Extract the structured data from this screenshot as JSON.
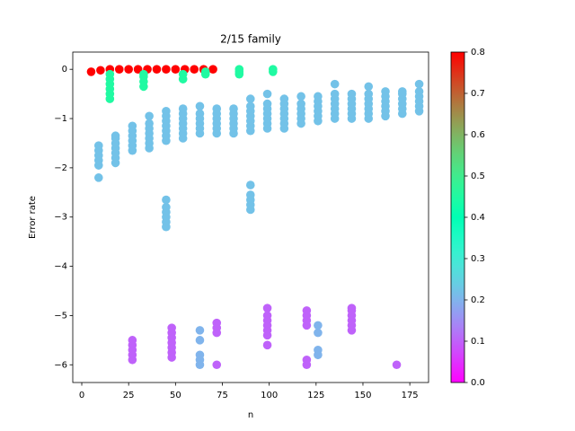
{
  "chart_data": {
    "type": "scatter",
    "title": "2/15 family",
    "x_label": "n",
    "y_label": "Error rate",
    "xlim": [
      -4.8,
      185
    ],
    "ylim": [
      -6.36,
      0.35
    ],
    "xticks": [
      0,
      25,
      50,
      75,
      100,
      125,
      150,
      175
    ],
    "yticks": [
      {
        "value": -6,
        "label": "−6"
      },
      {
        "value": -5,
        "label": "−5"
      },
      {
        "value": -4,
        "label": "−4"
      },
      {
        "value": -3,
        "label": "−3"
      },
      {
        "value": -2,
        "label": "−2"
      },
      {
        "value": -1,
        "label": "−1"
      },
      0
    ],
    "colormap": "rainbow",
    "clim": [
      0,
      0.8
    ],
    "cticks": [
      {
        "value": 0,
        "label": "0.0"
      },
      0.1,
      0.2,
      0.3,
      0.4,
      0.5,
      0.6,
      0.7,
      0.8
    ],
    "series": [
      {
        "c": 0.8,
        "x": [
          5,
          10,
          15,
          20,
          25,
          30,
          35,
          40,
          45,
          50,
          55,
          60,
          65,
          70
        ],
        "y": [
          -0.05,
          -0.02,
          0,
          0,
          0,
          0,
          0,
          0,
          0,
          0,
          0,
          0,
          0,
          0
        ]
      },
      {
        "c": 0.45,
        "x": [
          15,
          15,
          15,
          15,
          15,
          15,
          33,
          33,
          33,
          33,
          54,
          54,
          66,
          66,
          84,
          84,
          84,
          102,
          102
        ],
        "y": [
          -0.6,
          -0.5,
          -0.4,
          -0.3,
          -0.2,
          -0.1,
          -0.35,
          -0.25,
          -0.15,
          -0.1,
          -0.2,
          -0.1,
          -0.1,
          -0.05,
          -0.1,
          -0.05,
          0,
          -0.05,
          0
        ]
      },
      {
        "c": 0.22,
        "x": [
          9,
          9,
          9,
          9,
          9,
          9,
          18,
          18,
          18,
          18,
          18,
          18,
          18,
          27,
          27,
          27,
          27,
          27,
          27,
          36,
          36,
          36,
          36,
          36,
          36,
          36,
          45,
          45,
          45,
          45,
          45,
          45,
          45,
          54,
          54,
          54,
          54,
          54,
          54,
          54,
          63,
          63,
          63,
          63,
          63,
          63,
          72,
          72,
          72,
          72,
          72,
          72,
          81,
          81,
          81,
          81,
          81,
          81
        ],
        "y": [
          -2.2,
          -1.95,
          -1.85,
          -1.75,
          -1.65,
          -1.55,
          -1.9,
          -1.8,
          -1.7,
          -1.6,
          -1.5,
          -1.4,
          -1.35,
          -1.65,
          -1.55,
          -1.45,
          -1.35,
          -1.25,
          -1.15,
          -1.6,
          -1.5,
          -1.4,
          -1.3,
          -1.2,
          -1.1,
          -0.95,
          -1.45,
          -1.35,
          -1.25,
          -1.15,
          -1.05,
          -0.95,
          -0.85,
          -1.4,
          -1.3,
          -1.2,
          -1.1,
          -1,
          -0.9,
          -0.8,
          -1.3,
          -1.2,
          -1.1,
          -1,
          -0.9,
          -0.75,
          -1.3,
          -1.2,
          -1.1,
          -1,
          -0.9,
          -0.8,
          -1.3,
          -1.2,
          -1.1,
          -1,
          -0.9,
          -0.8
        ]
      },
      {
        "c": 0.22,
        "x": [
          90,
          90,
          90,
          90,
          90,
          90,
          90,
          99,
          99,
          99,
          99,
          99,
          99,
          99,
          108,
          108,
          108,
          108,
          108,
          108,
          108,
          117,
          117,
          117,
          117,
          117,
          117,
          126,
          126,
          126,
          126,
          126,
          126,
          135,
          135,
          135,
          135,
          135,
          135,
          135,
          144,
          144,
          144,
          144,
          144,
          144,
          153,
          153,
          153,
          153,
          153,
          153,
          153,
          162,
          162,
          162,
          162,
          162,
          162,
          171,
          171,
          171,
          171,
          171,
          171,
          180,
          180,
          180,
          180,
          180,
          180
        ],
        "y": [
          -1.25,
          -1.15,
          -1.05,
          -0.95,
          -0.85,
          -0.75,
          -0.6,
          -1.2,
          -1.1,
          -1,
          -0.9,
          -0.8,
          -0.7,
          -0.5,
          -1.2,
          -1.1,
          -1,
          -0.9,
          -0.8,
          -0.7,
          -0.6,
          -1.1,
          -1,
          -0.9,
          -0.8,
          -0.7,
          -0.55,
          -1.05,
          -0.95,
          -0.85,
          -0.75,
          -0.65,
          -0.55,
          -1,
          -0.9,
          -0.8,
          -0.7,
          -0.6,
          -0.5,
          -0.3,
          -1,
          -0.9,
          -0.8,
          -0.7,
          -0.6,
          -0.5,
          -1,
          -0.9,
          -0.8,
          -0.7,
          -0.6,
          -0.5,
          -0.35,
          -0.95,
          -0.85,
          -0.75,
          -0.65,
          -0.55,
          -0.45,
          -0.9,
          -0.8,
          -0.7,
          -0.6,
          -0.5,
          -0.45,
          -0.85,
          -0.75,
          -0.65,
          -0.55,
          -0.45,
          -0.3
        ]
      },
      {
        "c": 0.22,
        "x": [
          45,
          45,
          45,
          45,
          45,
          45,
          90,
          90,
          90,
          90,
          90
        ],
        "y": [
          -3.2,
          -3.1,
          -3,
          -2.9,
          -2.8,
          -2.65,
          -2.85,
          -2.75,
          -2.65,
          -2.55,
          -2.35
        ]
      },
      {
        "c": 0.1,
        "x": [
          27,
          27,
          27,
          27,
          27,
          48,
          48,
          48,
          48,
          48,
          48,
          48,
          72,
          72,
          72,
          72,
          99,
          99,
          99,
          99,
          99,
          99,
          99,
          120,
          120,
          120,
          120,
          120,
          120,
          144,
          144,
          144,
          144,
          144,
          144,
          168
        ],
        "y": [
          -5.9,
          -5.8,
          -5.7,
          -5.6,
          -5.5,
          -5.85,
          -5.75,
          -5.65,
          -5.55,
          -5.45,
          -5.35,
          -5.25,
          -5.35,
          -5.25,
          -5.15,
          -6,
          -5.6,
          -5.4,
          -5.3,
          -5.2,
          -5.1,
          -5,
          -4.85,
          -6,
          -5.9,
          -5.2,
          -5.1,
          -5,
          -4.9,
          -5.3,
          -5.2,
          -5.1,
          -5,
          -4.9,
          -4.85,
          -6
        ]
      },
      {
        "c": 0.2,
        "x": [
          63,
          63,
          63,
          63,
          63,
          126,
          126,
          126,
          126
        ],
        "y": [
          -6,
          -5.9,
          -5.8,
          -5.5,
          -5.3,
          -5.8,
          -5.7,
          -5.35,
          -5.2
        ]
      }
    ]
  }
}
